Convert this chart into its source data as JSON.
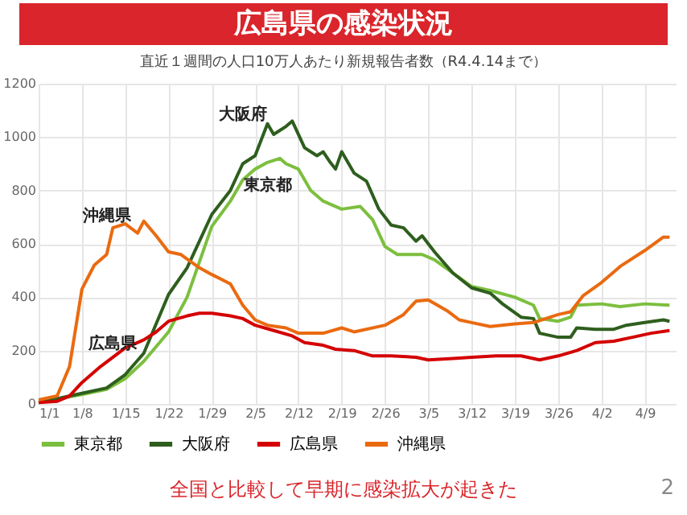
{
  "chart_data": {
    "type": "line",
    "title": "広島県の感染状況",
    "subtitle": "直近１週間の人口10万人あたり新規報告者数（R4.4.14まで）",
    "xlim": [
      "--01-01",
      "--04-14"
    ],
    "xticks": [
      {
        "value": "--01-01",
        "label": "1/1"
      },
      {
        "value": "--01-08",
        "label": "1/8"
      },
      {
        "value": "--01-15",
        "label": "1/15"
      },
      {
        "value": "--01-22",
        "label": "1/22"
      },
      {
        "value": "--01-29",
        "label": "1/29"
      },
      {
        "value": "--02-05",
        "label": "2/5"
      },
      {
        "value": "--02-12",
        "label": "2/12"
      },
      {
        "value": "--02-19",
        "label": "2/19"
      },
      {
        "value": "--02-26",
        "label": "2/26"
      },
      {
        "value": "--03-05",
        "label": "3/5"
      },
      {
        "value": "--03-12",
        "label": "3/12"
      },
      {
        "value": "--03-19",
        "label": "3/19"
      },
      {
        "value": "--03-26",
        "label": "3/26"
      },
      {
        "value": "--04-02",
        "label": "4/2"
      },
      {
        "value": "--04-09",
        "label": "4/9"
      }
    ],
    "ylim": [
      0,
      1200
    ],
    "yticks": [
      0,
      200,
      400,
      600,
      800,
      1000,
      1200
    ],
    "grid": true,
    "legend": "bottom",
    "line_style": "solid",
    "series": [
      {
        "name": "東京都",
        "color": "#7cbf3f",
        "x": [
          "--01-01",
          "--01-08",
          "--01-12",
          "--01-15",
          "--01-18",
          "--01-22",
          "--01-25",
          "--01-29",
          "--02-01",
          "--02-03",
          "--02-05",
          "--02-07",
          "--02-09",
          "--02-10",
          "--02-12",
          "--02-14",
          "--02-16",
          "--02-19",
          "--02-22",
          "--02-24",
          "--02-26",
          "--02-28",
          "--03-02",
          "--03-04",
          "--03-06",
          "--03-09",
          "--03-12",
          "--03-15",
          "--03-19",
          "--03-22",
          "--03-23",
          "--03-26",
          "--03-28",
          "--03-29",
          "--04-02",
          "--04-05",
          "--04-09",
          "--04-13"
        ],
        "values": [
          5,
          35,
          55,
          95,
          160,
          270,
          400,
          665,
          760,
          840,
          880,
          905,
          920,
          900,
          880,
          800,
          760,
          730,
          740,
          690,
          590,
          560,
          560,
          560,
          540,
          490,
          440,
          425,
          400,
          370,
          320,
          310,
          325,
          370,
          375,
          365,
          375,
          370
        ]
      },
      {
        "name": "大阪府",
        "color": "#2e5e1e",
        "x": [
          "--01-01",
          "--01-08",
          "--01-12",
          "--01-15",
          "--01-18",
          "--01-22",
          "--01-25",
          "--01-29",
          "--02-01",
          "--02-03",
          "--02-05",
          "--02-07",
          "--02-08",
          "--02-10",
          "--02-11",
          "--02-13",
          "--02-15",
          "--02-16",
          "--02-17",
          "--02-18",
          "--02-19",
          "--02-21",
          "--02-23",
          "--02-25",
          "--02-27",
          "--03-01",
          "--03-03",
          "--03-04",
          "--03-06",
          "--03-09",
          "--03-12",
          "--03-15",
          "--03-17",
          "--03-20",
          "--03-22",
          "--03-23",
          "--03-26",
          "--03-28",
          "--03-29",
          "--04-01",
          "--04-04",
          "--04-06",
          "--04-09",
          "--04-12",
          "--04-13"
        ],
        "values": [
          5,
          40,
          60,
          110,
          190,
          410,
          510,
          710,
          800,
          900,
          930,
          1050,
          1010,
          1040,
          1060,
          960,
          930,
          945,
          910,
          880,
          945,
          865,
          835,
          730,
          670,
          660,
          610,
          630,
          570,
          490,
          435,
          415,
          375,
          325,
          320,
          265,
          250,
          250,
          285,
          280,
          280,
          295,
          305,
          315,
          310
        ]
      },
      {
        "name": "広島県",
        "color": "#d40000",
        "x": [
          "--01-01",
          "--01-04",
          "--01-06",
          "--01-08",
          "--01-11",
          "--01-15",
          "--01-18",
          "--01-20",
          "--01-22",
          "--01-25",
          "--01-27",
          "--01-29",
          "--02-01",
          "--02-03",
          "--02-05",
          "--02-08",
          "--02-11",
          "--02-13",
          "--02-16",
          "--02-18",
          "--02-21",
          "--02-24",
          "--02-27",
          "--03-03",
          "--03-05",
          "--03-09",
          "--03-12",
          "--03-16",
          "--03-20",
          "--03-23",
          "--03-26",
          "--03-29",
          "--04-01",
          "--04-04",
          "--04-07",
          "--04-10",
          "--04-13"
        ],
        "values": [
          5,
          10,
          30,
          80,
          140,
          210,
          240,
          270,
          310,
          330,
          340,
          340,
          330,
          320,
          295,
          275,
          255,
          230,
          220,
          205,
          200,
          180,
          180,
          175,
          165,
          170,
          175,
          180,
          180,
          165,
          180,
          200,
          230,
          235,
          250,
          265,
          275
        ]
      },
      {
        "name": "沖縄県",
        "color": "#ea6a10",
        "x": [
          "--01-01",
          "--01-04",
          "--01-06",
          "--01-08",
          "--01-10",
          "--01-12",
          "--01-13",
          "--01-15",
          "--01-17",
          "--01-18",
          "--01-20",
          "--01-22",
          "--01-24",
          "--01-27",
          "--01-29",
          "--02-01",
          "--02-03",
          "--02-05",
          "--02-07",
          "--02-10",
          "--02-12",
          "--02-16",
          "--02-19",
          "--02-21",
          "--02-26",
          "--03-01",
          "--03-03",
          "--03-05",
          "--03-08",
          "--03-10",
          "--03-12",
          "--03-15",
          "--03-19",
          "--03-22",
          "--03-26",
          "--03-28",
          "--03-30",
          "--04-02",
          "--04-05",
          "--04-09",
          "--04-12",
          "--04-13"
        ],
        "values": [
          15,
          30,
          140,
          430,
          520,
          560,
          660,
          675,
          640,
          685,
          630,
          570,
          560,
          510,
          485,
          450,
          370,
          315,
          295,
          285,
          265,
          265,
          285,
          270,
          295,
          335,
          385,
          390,
          350,
          315,
          305,
          290,
          300,
          305,
          335,
          345,
          405,
          455,
          515,
          575,
          625,
          625
        ]
      }
    ],
    "annotations": [
      "全国と比較して早期に感染拡大が起きた",
      "2"
    ]
  }
}
